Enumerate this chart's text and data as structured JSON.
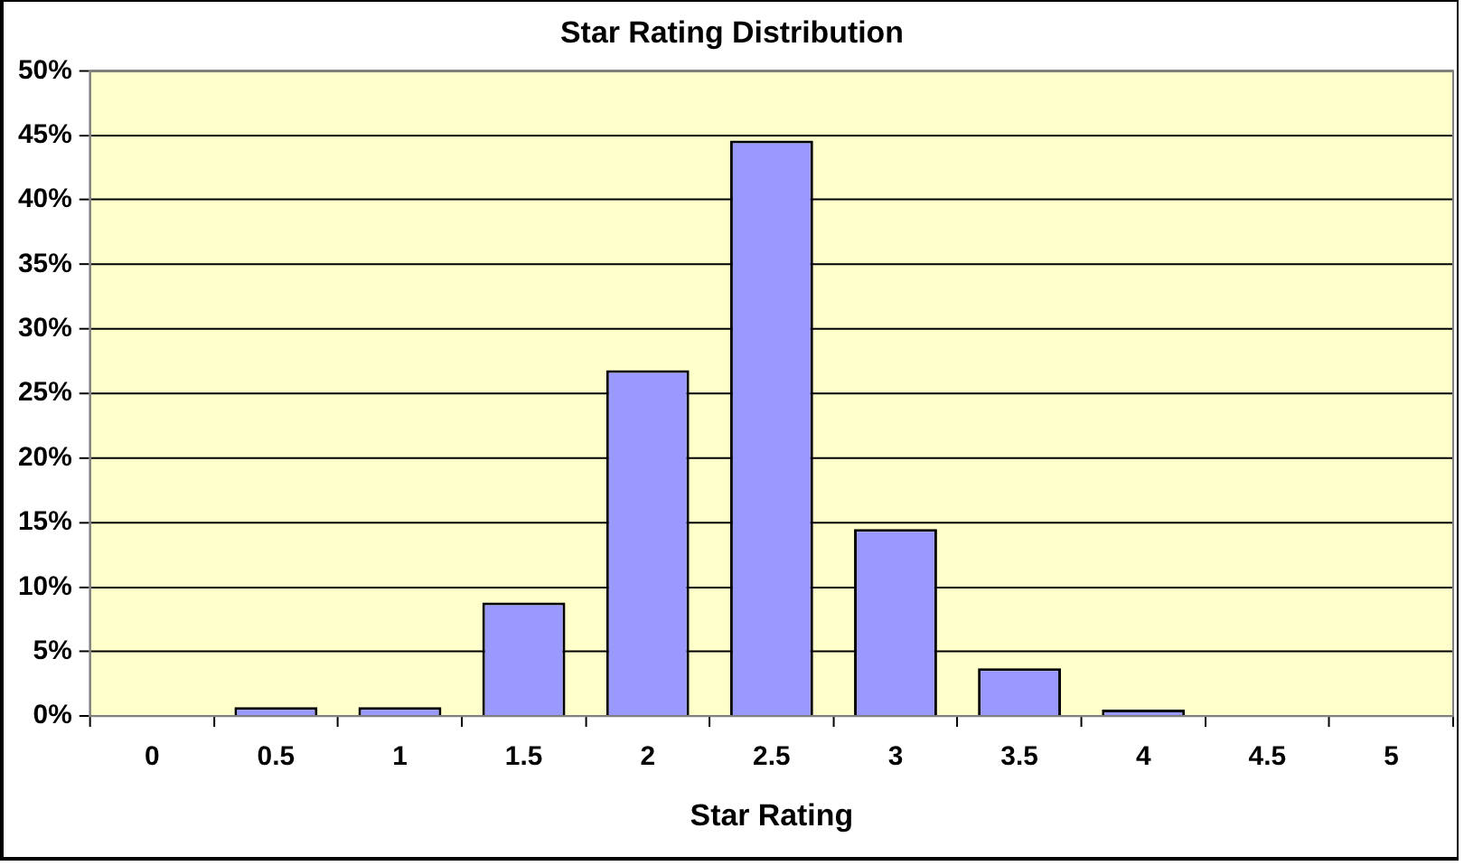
{
  "chart_data": {
    "type": "bar",
    "title": "Star Rating Distribution",
    "xlabel": "Star Rating",
    "categories": [
      "0",
      "0.5",
      "1",
      "1.5",
      "2",
      "2.5",
      "3",
      "3.5",
      "4",
      "4.5",
      "5"
    ],
    "values": [
      0,
      0.7,
      0.7,
      8.8,
      26.8,
      44.6,
      14.5,
      3.7,
      0.5,
      0,
      0
    ],
    "color": "#9999ff",
    "ylim": [
      0,
      50
    ],
    "yticks": [
      {
        "value": 0,
        "label": "0%"
      },
      {
        "value": 5,
        "label": "5%"
      },
      {
        "value": 10,
        "label": "10%"
      },
      {
        "value": 15,
        "label": "15%"
      },
      {
        "value": 20,
        "label": "20%"
      },
      {
        "value": 25,
        "label": "25%"
      },
      {
        "value": 30,
        "label": "30%"
      },
      {
        "value": 35,
        "label": "35%"
      },
      {
        "value": 40,
        "label": "40%"
      },
      {
        "value": 45,
        "label": "45%"
      },
      {
        "value": 50,
        "label": "50%"
      }
    ],
    "grid": "y",
    "legend": false
  }
}
